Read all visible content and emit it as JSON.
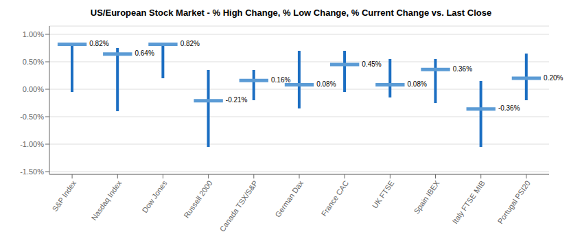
{
  "chart_data": {
    "type": "high_low",
    "title": "US/European Stock Market - % High Change, % Low Change, % Current Change vs. Last Close",
    "categories": [
      "S&P Index",
      "Nasdaq Index",
      "Dow Jones",
      "Russell 2000",
      "Canada TSX/S&P",
      "German Dax",
      "France CAC",
      "UK FTSE",
      "Spain IBEX",
      "Italy FTSE MIB",
      "Portugal PSI20"
    ],
    "series": [
      {
        "type": "range",
        "color": "#1B6EC2",
        "high": [
          0.82,
          0.75,
          0.85,
          0.35,
          0.35,
          0.7,
          0.7,
          0.55,
          0.55,
          0.15,
          0.65
        ],
        "low": [
          -0.05,
          -0.4,
          0.2,
          -1.05,
          -0.2,
          -0.35,
          -0.05,
          -0.15,
          -0.25,
          -1.05,
          -0.2
        ]
      },
      {
        "type": "tick",
        "color": "#5B9BD5",
        "values": [
          0.82,
          0.64,
          0.82,
          -0.21,
          0.16,
          0.08,
          0.45,
          0.08,
          0.36,
          -0.36,
          0.2
        ],
        "value_labels": [
          "0.82%",
          "0.64%",
          "0.82%",
          "-0.21%",
          "0.16%",
          "0.08%",
          "0.45%",
          "0.08%",
          "0.36%",
          "-0.36%",
          "0.20%"
        ]
      }
    ],
    "data_labels": true,
    "ylim": [
      -1.55,
      1.15
    ],
    "yticks": [
      {
        "value": -1.5,
        "label": "-1.50%"
      },
      {
        "value": -1.0,
        "label": "-1.00%"
      },
      {
        "value": -0.5,
        "label": "-0.50%"
      },
      {
        "value": 0.0,
        "label": "0.00%"
      },
      {
        "value": 0.5,
        "label": "0.50%"
      },
      {
        "value": 1.0,
        "label": "1.00%"
      }
    ],
    "grid": true
  }
}
